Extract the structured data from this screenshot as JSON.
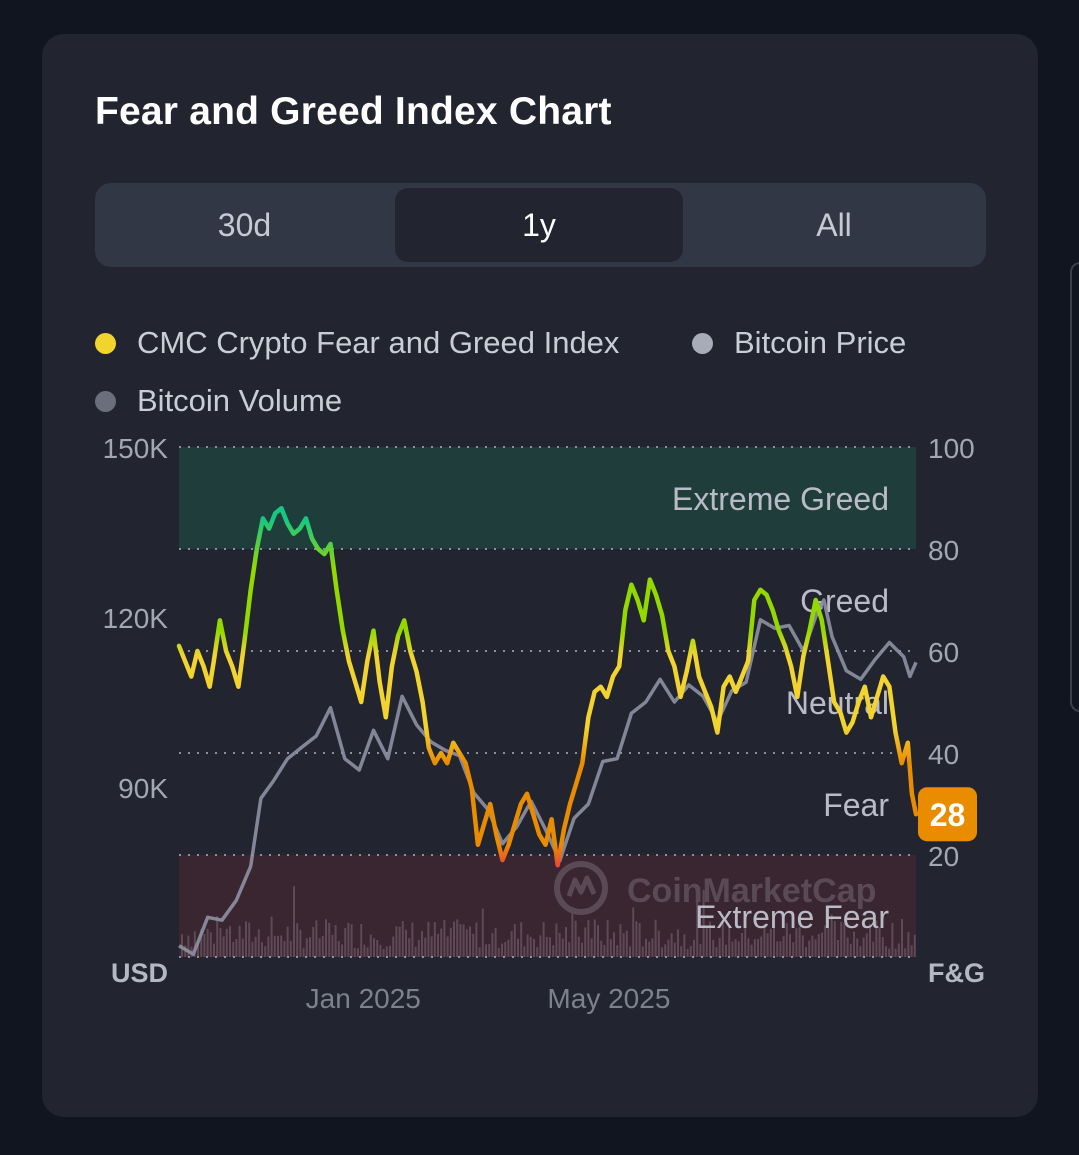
{
  "title": "Fear and Greed Index Chart",
  "tabs": [
    {
      "label": "30d",
      "active": false
    },
    {
      "label": "1y",
      "active": true
    },
    {
      "label": "All",
      "active": false
    }
  ],
  "legend": [
    {
      "label": "CMC Crypto Fear and Greed Index",
      "color": "#f3d42f"
    },
    {
      "label": "Bitcoin Price",
      "color": "#a8abb8"
    },
    {
      "label": "Bitcoin Volume",
      "color": "#6b6f7c"
    }
  ],
  "watermark": "CoinMarketCap",
  "colors": {
    "extreme_fear": "#ea3943",
    "fear": "#ea8c00",
    "neutral": "#f3d42f",
    "greed": "#93d900",
    "extreme_greed": "#16c784",
    "price_line": "#8e91a3",
    "badge": "#ea8c00"
  },
  "chart_data": {
    "type": "line",
    "left_axis": {
      "unit": "USD",
      "ticks": [
        "150K",
        "120K",
        "90K"
      ],
      "tick_values": [
        150000,
        120000,
        90000
      ],
      "range": [
        60000,
        150000
      ]
    },
    "right_axis": {
      "unit": "F&G",
      "ticks": [
        "100",
        "80",
        "60",
        "40",
        "20"
      ],
      "tick_values": [
        100,
        80,
        60,
        40,
        20
      ],
      "range": [
        0,
        100
      ]
    },
    "x_ticks": [
      {
        "label": "Jan 2025",
        "value": "2025-01-01"
      },
      {
        "label": "May 2025",
        "value": "2025-05-01"
      }
    ],
    "x_range": [
      "2024-10-03",
      "2025-09-28"
    ],
    "zones": [
      {
        "label": "Extreme Greed",
        "from": 80,
        "to": 100
      },
      {
        "label": "Greed",
        "from": 60,
        "to": 80
      },
      {
        "label": "Neutral",
        "from": 40,
        "to": 60
      },
      {
        "label": "Fear",
        "from": 20,
        "to": 40
      },
      {
        "label": "Extreme Fear",
        "from": 0,
        "to": 20
      }
    ],
    "current_value": "28",
    "series": [
      {
        "name": "CMC Crypto Fear and Greed Index",
        "axis": "right",
        "points": [
          [
            "2024-10-03",
            61
          ],
          [
            "2024-10-06",
            58
          ],
          [
            "2024-10-09",
            55
          ],
          [
            "2024-10-12",
            60
          ],
          [
            "2024-10-15",
            57
          ],
          [
            "2024-10-18",
            53
          ],
          [
            "2024-10-20",
            58
          ],
          [
            "2024-10-23",
            66
          ],
          [
            "2024-10-26",
            60
          ],
          [
            "2024-10-29",
            57
          ],
          [
            "2024-11-01",
            53
          ],
          [
            "2024-11-04",
            62
          ],
          [
            "2024-11-07",
            72
          ],
          [
            "2024-11-10",
            80
          ],
          [
            "2024-11-13",
            86
          ],
          [
            "2024-11-16",
            84
          ],
          [
            "2024-11-19",
            87
          ],
          [
            "2024-11-22",
            88
          ],
          [
            "2024-11-25",
            85
          ],
          [
            "2024-11-28",
            83
          ],
          [
            "2024-12-01",
            84
          ],
          [
            "2024-12-04",
            86
          ],
          [
            "2024-12-07",
            82
          ],
          [
            "2024-12-10",
            80
          ],
          [
            "2024-12-13",
            79
          ],
          [
            "2024-12-16",
            81
          ],
          [
            "2024-12-19",
            72
          ],
          [
            "2024-12-22",
            64
          ],
          [
            "2024-12-25",
            58
          ],
          [
            "2024-12-28",
            54
          ],
          [
            "2024-12-31",
            50
          ],
          [
            "2025-01-03",
            58
          ],
          [
            "2025-01-06",
            64
          ],
          [
            "2025-01-09",
            54
          ],
          [
            "2025-01-12",
            47
          ],
          [
            "2025-01-15",
            57
          ],
          [
            "2025-01-18",
            63
          ],
          [
            "2025-01-21",
            66
          ],
          [
            "2025-01-24",
            60
          ],
          [
            "2025-01-27",
            56
          ],
          [
            "2025-01-30",
            50
          ],
          [
            "2025-02-02",
            41
          ],
          [
            "2025-02-05",
            38
          ],
          [
            "2025-02-08",
            40
          ],
          [
            "2025-02-11",
            38
          ],
          [
            "2025-02-14",
            42
          ],
          [
            "2025-02-17",
            40
          ],
          [
            "2025-02-20",
            38
          ],
          [
            "2025-02-23",
            33
          ],
          [
            "2025-02-26",
            22
          ],
          [
            "2025-03-01",
            26
          ],
          [
            "2025-03-04",
            30
          ],
          [
            "2025-03-07",
            24
          ],
          [
            "2025-03-10",
            19
          ],
          [
            "2025-03-13",
            22
          ],
          [
            "2025-03-16",
            26
          ],
          [
            "2025-03-19",
            30
          ],
          [
            "2025-03-22",
            32
          ],
          [
            "2025-03-25",
            28
          ],
          [
            "2025-03-28",
            24
          ],
          [
            "2025-03-31",
            22
          ],
          [
            "2025-04-03",
            27
          ],
          [
            "2025-04-06",
            18
          ],
          [
            "2025-04-09",
            25
          ],
          [
            "2025-04-12",
            30
          ],
          [
            "2025-04-15",
            34
          ],
          [
            "2025-04-18",
            38
          ],
          [
            "2025-04-21",
            47
          ],
          [
            "2025-04-24",
            52
          ],
          [
            "2025-04-27",
            53
          ],
          [
            "2025-04-30",
            51
          ],
          [
            "2025-05-03",
            55
          ],
          [
            "2025-05-06",
            57
          ],
          [
            "2025-05-09",
            68
          ],
          [
            "2025-05-12",
            73
          ],
          [
            "2025-05-15",
            70
          ],
          [
            "2025-05-18",
            66
          ],
          [
            "2025-05-21",
            74
          ],
          [
            "2025-05-24",
            71
          ],
          [
            "2025-05-27",
            67
          ],
          [
            "2025-05-30",
            60
          ],
          [
            "2025-06-02",
            57
          ],
          [
            "2025-06-05",
            51
          ],
          [
            "2025-06-08",
            56
          ],
          [
            "2025-06-11",
            62
          ],
          [
            "2025-06-14",
            55
          ],
          [
            "2025-06-17",
            52
          ],
          [
            "2025-06-20",
            49
          ],
          [
            "2025-06-23",
            44
          ],
          [
            "2025-06-26",
            53
          ],
          [
            "2025-06-29",
            55
          ],
          [
            "2025-07-02",
            52
          ],
          [
            "2025-07-05",
            55
          ],
          [
            "2025-07-08",
            58
          ],
          [
            "2025-07-11",
            70
          ],
          [
            "2025-07-14",
            72
          ],
          [
            "2025-07-17",
            71
          ],
          [
            "2025-07-20",
            68
          ],
          [
            "2025-07-23",
            64
          ],
          [
            "2025-07-26",
            61
          ],
          [
            "2025-07-29",
            57
          ],
          [
            "2025-08-01",
            51
          ],
          [
            "2025-08-04",
            59
          ],
          [
            "2025-08-07",
            64
          ],
          [
            "2025-08-10",
            70
          ],
          [
            "2025-08-13",
            66
          ],
          [
            "2025-08-16",
            58
          ],
          [
            "2025-08-19",
            50
          ],
          [
            "2025-08-22",
            48
          ],
          [
            "2025-08-25",
            44
          ],
          [
            "2025-08-28",
            46
          ],
          [
            "2025-08-31",
            50
          ],
          [
            "2025-09-03",
            53
          ],
          [
            "2025-09-06",
            47
          ],
          [
            "2025-09-09",
            51
          ],
          [
            "2025-09-12",
            55
          ],
          [
            "2025-09-15",
            53
          ],
          [
            "2025-09-18",
            44
          ],
          [
            "2025-09-21",
            38
          ],
          [
            "2025-09-24",
            42
          ],
          [
            "2025-09-26",
            32
          ],
          [
            "2025-09-28",
            28
          ]
        ]
      },
      {
        "name": "Bitcoin Price",
        "axis": "left",
        "points": [
          [
            "2024-10-03",
            62000
          ],
          [
            "2024-10-10",
            60500
          ],
          [
            "2024-10-17",
            67000
          ],
          [
            "2024-10-24",
            66500
          ],
          [
            "2024-10-31",
            70000
          ],
          [
            "2024-11-07",
            76000
          ],
          [
            "2024-11-12",
            88000
          ],
          [
            "2024-11-18",
            91000
          ],
          [
            "2024-11-25",
            95000
          ],
          [
            "2024-12-02",
            97000
          ],
          [
            "2024-12-09",
            99000
          ],
          [
            "2024-12-16",
            104000
          ],
          [
            "2024-12-23",
            95000
          ],
          [
            "2024-12-30",
            93000
          ],
          [
            "2025-01-06",
            100000
          ],
          [
            "2025-01-13",
            95000
          ],
          [
            "2025-01-20",
            106000
          ],
          [
            "2025-01-27",
            101000
          ],
          [
            "2025-02-03",
            98000
          ],
          [
            "2025-02-10",
            96500
          ],
          [
            "2025-02-17",
            95500
          ],
          [
            "2025-02-24",
            89000
          ],
          [
            "2025-03-03",
            86000
          ],
          [
            "2025-03-10",
            80000
          ],
          [
            "2025-03-17",
            83000
          ],
          [
            "2025-03-24",
            87500
          ],
          [
            "2025-03-31",
            82500
          ],
          [
            "2025-04-07",
            77000
          ],
          [
            "2025-04-14",
            84500
          ],
          [
            "2025-04-21",
            87000
          ],
          [
            "2025-04-28",
            94500
          ],
          [
            "2025-05-05",
            95000
          ],
          [
            "2025-05-12",
            103000
          ],
          [
            "2025-05-19",
            105000
          ],
          [
            "2025-05-26",
            109000
          ],
          [
            "2025-06-02",
            105000
          ],
          [
            "2025-06-09",
            108000
          ],
          [
            "2025-06-16",
            106000
          ],
          [
            "2025-06-23",
            101500
          ],
          [
            "2025-06-30",
            107000
          ],
          [
            "2025-07-07",
            108500
          ],
          [
            "2025-07-14",
            119500
          ],
          [
            "2025-07-21",
            118000
          ],
          [
            "2025-07-28",
            118500
          ],
          [
            "2025-08-04",
            114000
          ],
          [
            "2025-08-11",
            121000
          ],
          [
            "2025-08-14",
            123000
          ],
          [
            "2025-08-18",
            116500
          ],
          [
            "2025-08-25",
            110500
          ],
          [
            "2025-09-01",
            109000
          ],
          [
            "2025-09-08",
            112500
          ],
          [
            "2025-09-15",
            115500
          ],
          [
            "2025-09-22",
            113000
          ],
          [
            "2025-09-25",
            109500
          ],
          [
            "2025-09-28",
            112000
          ]
        ]
      }
    ]
  }
}
